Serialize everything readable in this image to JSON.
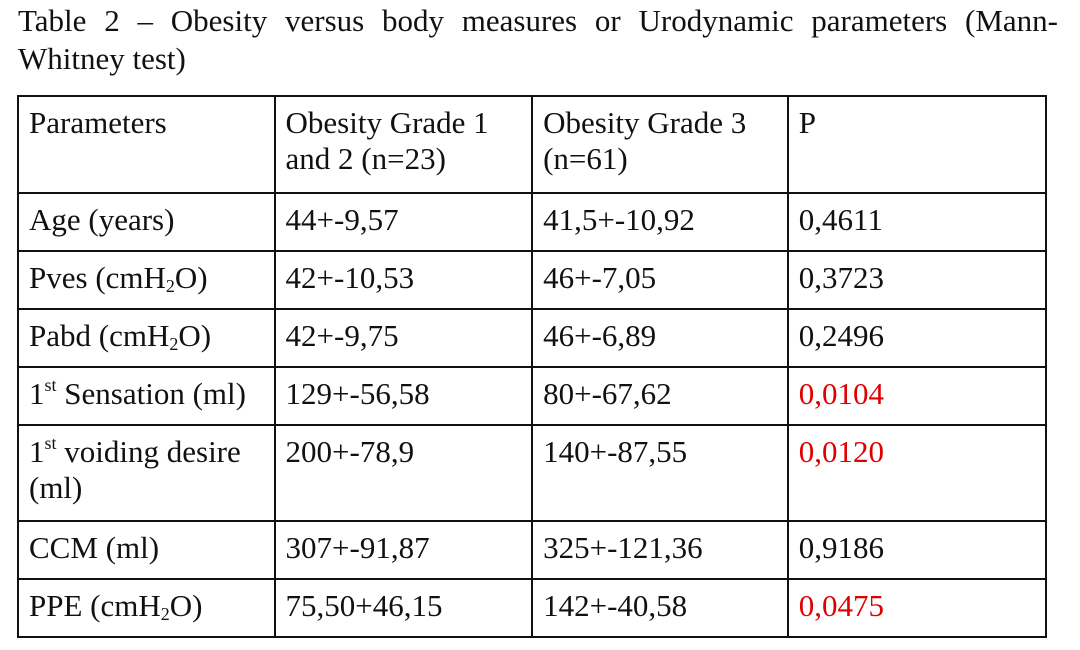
{
  "caption": "Table 2 – Obesity versus body measures or Urodynamic parameters (Mann-Whitney test)",
  "headers": [
    "Parameters",
    "Obesity Grade 1 and 2 (n=23)",
    "Obesity Grade 3 (n=61)",
    "P"
  ],
  "rows": [
    {
      "param_pre": "Age (years)",
      "grade12": "44+-9,57",
      "grade3": "41,5+-10,92",
      "p": "0,4611",
      "significant": false
    },
    {
      "param_pre": "Pves (cmH",
      "param_sub": "2",
      "param_post": "O)",
      "grade12": "42+-10,53",
      "grade3": "46+-7,05",
      "p": "0,3723",
      "significant": false
    },
    {
      "param_pre": "Pabd (cmH",
      "param_sub": "2",
      "param_post": "O)",
      "grade12": "42+-9,75",
      "grade3": "46+-6,89",
      "p": "0,2496",
      "significant": false
    },
    {
      "param_pre": "1",
      "param_sup": "st",
      "param_post": " Sensation (ml)",
      "grade12": "129+-56,58",
      "grade3": "80+-67,62",
      "p": "0,0104",
      "significant": true
    },
    {
      "param_pre": "1",
      "param_sup": "st",
      "param_post": " voiding desire (ml)",
      "grade12": "200+-78,9",
      "grade3": "140+-87,55",
      "p": "0,0120",
      "significant": true
    },
    {
      "param_pre": "CCM (ml)",
      "grade12": "307+-91,87",
      "grade3": "325+-121,36",
      "p": "0,9186",
      "significant": false
    },
    {
      "param_pre": "PPE (cmH",
      "param_sub": "2",
      "param_post": "O)",
      "grade12": "75,50+46,15",
      "grade3": "142+-40,58",
      "p": "0,0475",
      "significant": true
    }
  ],
  "colors": {
    "significant_p": "#e00000",
    "text": "#111111",
    "border": "#111111"
  }
}
